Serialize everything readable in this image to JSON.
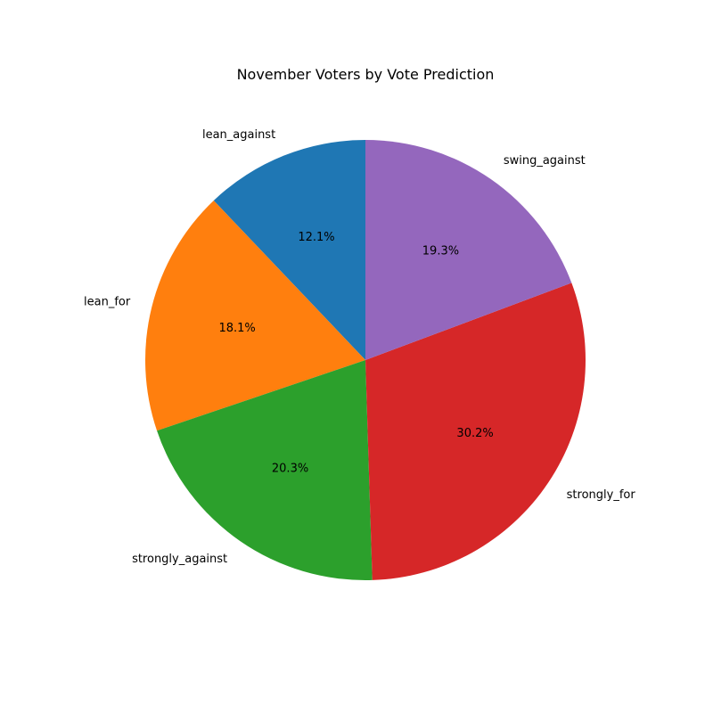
{
  "chart_data": {
    "type": "pie",
    "title": "November Voters by Vote Prediction",
    "start_angle_deg": 90,
    "direction": "counterclockwise",
    "slices": [
      {
        "label": "lean_against",
        "value": 12.1,
        "pct_text": "12.1%",
        "color": "#1f77b4"
      },
      {
        "label": "lean_for",
        "value": 18.1,
        "pct_text": "18.1%",
        "color": "#ff7f0e"
      },
      {
        "label": "strongly_against",
        "value": 20.3,
        "pct_text": "20.3%",
        "color": "#2ca02c"
      },
      {
        "label": "strongly_for",
        "value": 30.2,
        "pct_text": "30.2%",
        "color": "#d62728"
      },
      {
        "label": "swing_against",
        "value": 19.3,
        "pct_text": "19.3%",
        "color": "#9467bd"
      }
    ]
  }
}
